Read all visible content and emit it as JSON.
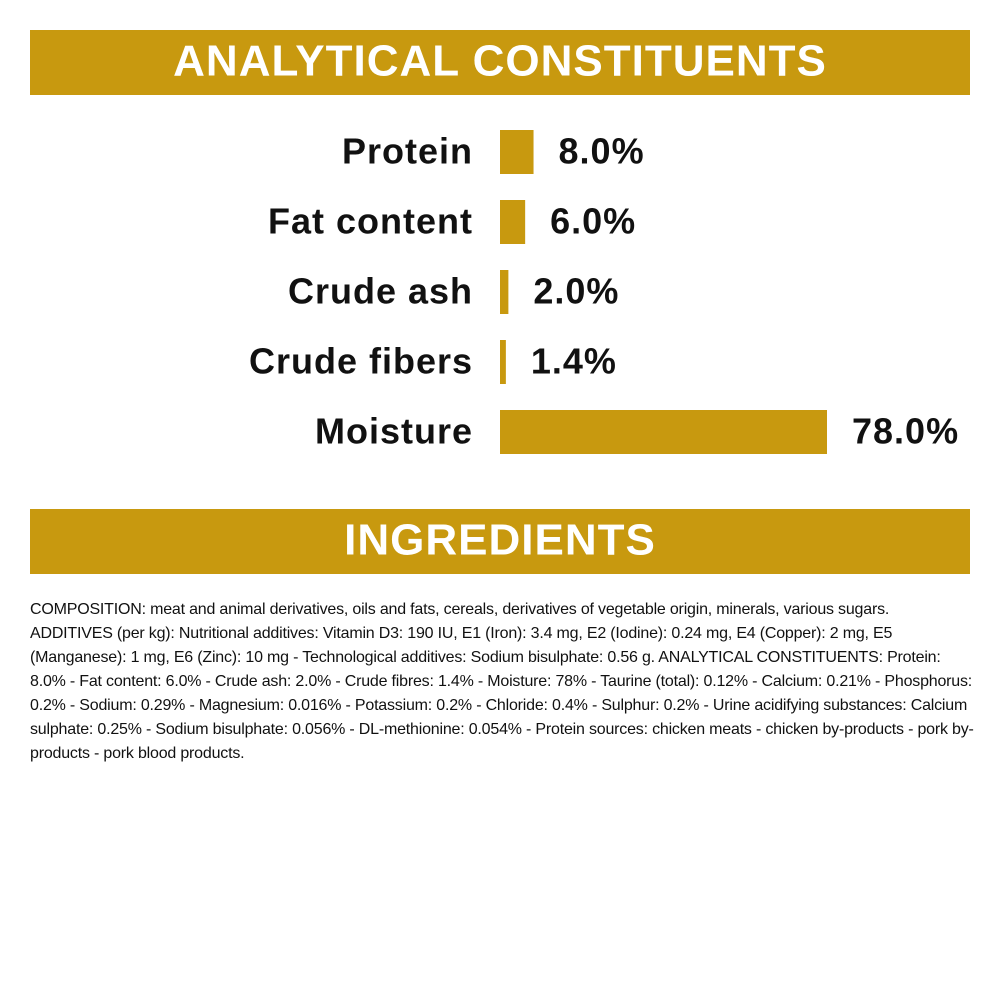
{
  "chart_data": {
    "type": "bar",
    "orientation": "horizontal",
    "title": "ANALYTICAL CONSTITUENTS",
    "categories": [
      "Protein",
      "Fat content",
      "Crude ash",
      "Crude fibers",
      "Moisture"
    ],
    "values": [
      8.0,
      6.0,
      2.0,
      1.4,
      78.0
    ],
    "value_labels": [
      "8.0%",
      "6.0%",
      "2.0%",
      "1.4%",
      "78.0%"
    ],
    "color": "#c8990f"
  },
  "ingredients": {
    "title": "INGREDIENTS",
    "text": "COMPOSITION: meat and animal derivatives, oils and fats, cereals, derivatives of vegetable origin, minerals, various sugars. ADDITIVES (per kg): Nutritional additives: Vitamin D3: 190 IU, E1 (Iron): 3.4 mg, E2 (Iodine): 0.24 mg, E4 (Copper): 2 mg, E5 (Manganese): 1 mg, E6 (Zinc): 10 mg - Technological additives: Sodium bisulphate: 0.56 g. ANALYTICAL CONSTITUENTS: Protein: 8.0% - Fat content: 6.0% - Crude ash: 2.0% - Crude fibres: 1.4% - Moisture: 78% - Taurine (total): 0.12% - Calcium: 0.21% - Phosphorus: 0.2% - Sodium: 0.29% - Magnesium: 0.016% - Potassium: 0.2% - Chloride: 0.4% - Sulphur: 0.2% - Urine acidifying substances: Calcium sulphate: 0.25% - Sodium bisulphate: 0.056% - DL-methionine: 0.054% - Protein sources: chicken meats - chicken by-products - pork by-products - pork blood products."
  }
}
